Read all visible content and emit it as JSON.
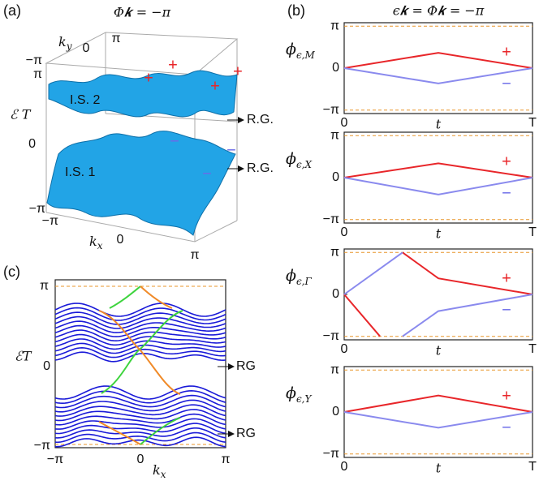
{
  "panel_labels": [
    "(a)",
    "(b)",
    "(c)"
  ],
  "panel_a": {
    "title": "Φ𝒌 = −π",
    "ky": "k",
    "ky_sub": "y",
    "kx": "k",
    "kx_sub": "x",
    "energy": "ℰ T",
    "ky_ticks": [
      "0",
      "π"
    ],
    "left_ticks": [
      "−π",
      "π"
    ],
    "e_ticks": [
      "0",
      "−π"
    ],
    "kx_ticks": [
      "−π",
      "0",
      "π"
    ],
    "surfaces": [
      "I.S. 2",
      "I.S. 1"
    ],
    "rg": [
      "R.G.",
      "R.G."
    ],
    "plus": [
      "+",
      "+",
      "+",
      "+"
    ],
    "minus": [
      "−",
      "−",
      "−"
    ]
  },
  "panel_b": {
    "title": "ϵ𝒌 = Φ𝒌 = −π"
  },
  "panel_c": {
    "y_ticks": [
      "π",
      "0",
      "−π"
    ],
    "x_ticks": [
      "−π",
      "0",
      "π"
    ],
    "ylabel": "ℰT",
    "xlabel": "k",
    "xlabel_sub": "x",
    "rg": [
      "RG",
      "RG"
    ]
  },
  "chart_data": [
    {
      "type": "line",
      "ylabel": "ϕ",
      "ylabel_sub": "ϵ,M",
      "xlabel": "t",
      "xlim": [
        0,
        1
      ],
      "xticks": [
        0,
        {
          "value": 1,
          "label": "T"
        }
      ],
      "ylim": [
        -3.4,
        3.4
      ],
      "yticks": [
        {
          "value": 3.1416,
          "label": "π"
        },
        0,
        {
          "value": -3.1416,
          "label": "−π"
        }
      ],
      "series": [
        {
          "color": "#e8262a",
          "x": [
            0,
            0.5,
            1
          ],
          "values": [
            0,
            1.15,
            0
          ]
        },
        {
          "color": "#8a8aee",
          "x": [
            0,
            0.5,
            1
          ],
          "values": [
            0,
            -1.15,
            0
          ]
        }
      ],
      "annotations": [
        {
          "text": "+",
          "color": "#e8262a"
        },
        {
          "text": "−",
          "color": "#6a6ae8"
        }
      ]
    },
    {
      "type": "line",
      "ylabel": "ϕ",
      "ylabel_sub": "ϵ,X",
      "xlabel": "t",
      "xlim": [
        0,
        1
      ],
      "xticks": [
        0,
        {
          "value": 1,
          "label": "T"
        }
      ],
      "ylim": [
        -3.4,
        3.4
      ],
      "yticks": [
        {
          "value": 3.1416,
          "label": "π"
        },
        0,
        {
          "value": -3.1416,
          "label": "−π"
        }
      ],
      "series": [
        {
          "color": "#e8262a",
          "x": [
            0,
            0.5,
            1
          ],
          "values": [
            0,
            1.07,
            0
          ]
        },
        {
          "color": "#8a8aee",
          "x": [
            0,
            0.5,
            1
          ],
          "values": [
            0,
            -1.26,
            0
          ]
        }
      ],
      "annotations": [
        {
          "text": "+",
          "color": "#e8262a"
        },
        {
          "text": "−",
          "color": "#6a6ae8"
        }
      ]
    },
    {
      "type": "line",
      "ylabel": "ϕ",
      "ylabel_sub": "ϵ,Γ",
      "xlabel": "t",
      "xlim": [
        0,
        1
      ],
      "xticks": [
        0,
        {
          "value": 1,
          "label": "T"
        }
      ],
      "ylim": [
        -3.4,
        3.4
      ],
      "yticks": [
        {
          "value": 3.1416,
          "label": "π"
        },
        0,
        {
          "value": -3.1416,
          "label": "−π"
        }
      ],
      "series": [
        {
          "color": "#e8262a",
          "x": [
            0,
            0.19,
            null,
            0.31,
            0.5,
            1
          ],
          "values": [
            0,
            -3.1416,
            null,
            3.1416,
            1.2,
            0
          ]
        },
        {
          "color": "#8a8aee",
          "x": [
            0,
            0.31,
            null,
            0.31,
            0.5,
            1
          ],
          "values": [
            0,
            3.1416,
            null,
            -3.1416,
            -1.25,
            0
          ]
        }
      ],
      "annotations": [
        {
          "text": "+",
          "color": "#e8262a"
        },
        {
          "text": "−",
          "color": "#6a6ae8"
        }
      ]
    },
    {
      "type": "line",
      "ylabel": "ϕ",
      "ylabel_sub": "ϵ,Y",
      "xlabel": "t",
      "xlim": [
        0,
        1
      ],
      "xticks": [
        0,
        {
          "value": 1,
          "label": "T"
        }
      ],
      "ylim": [
        -3.4,
        3.4
      ],
      "yticks": [
        {
          "value": 3.1416,
          "label": "π"
        },
        0,
        {
          "value": -3.1416,
          "label": "−π"
        }
      ],
      "series": [
        {
          "color": "#e8262a",
          "x": [
            0,
            0.5,
            1
          ],
          "values": [
            0,
            1.24,
            0
          ]
        },
        {
          "color": "#8a8aee",
          "x": [
            0,
            0.5,
            1
          ],
          "values": [
            0,
            -1.18,
            0
          ]
        }
      ],
      "annotations": [
        {
          "text": "+",
          "color": "#e8262a"
        },
        {
          "text": "−",
          "color": "#6a6ae8"
        }
      ]
    }
  ]
}
